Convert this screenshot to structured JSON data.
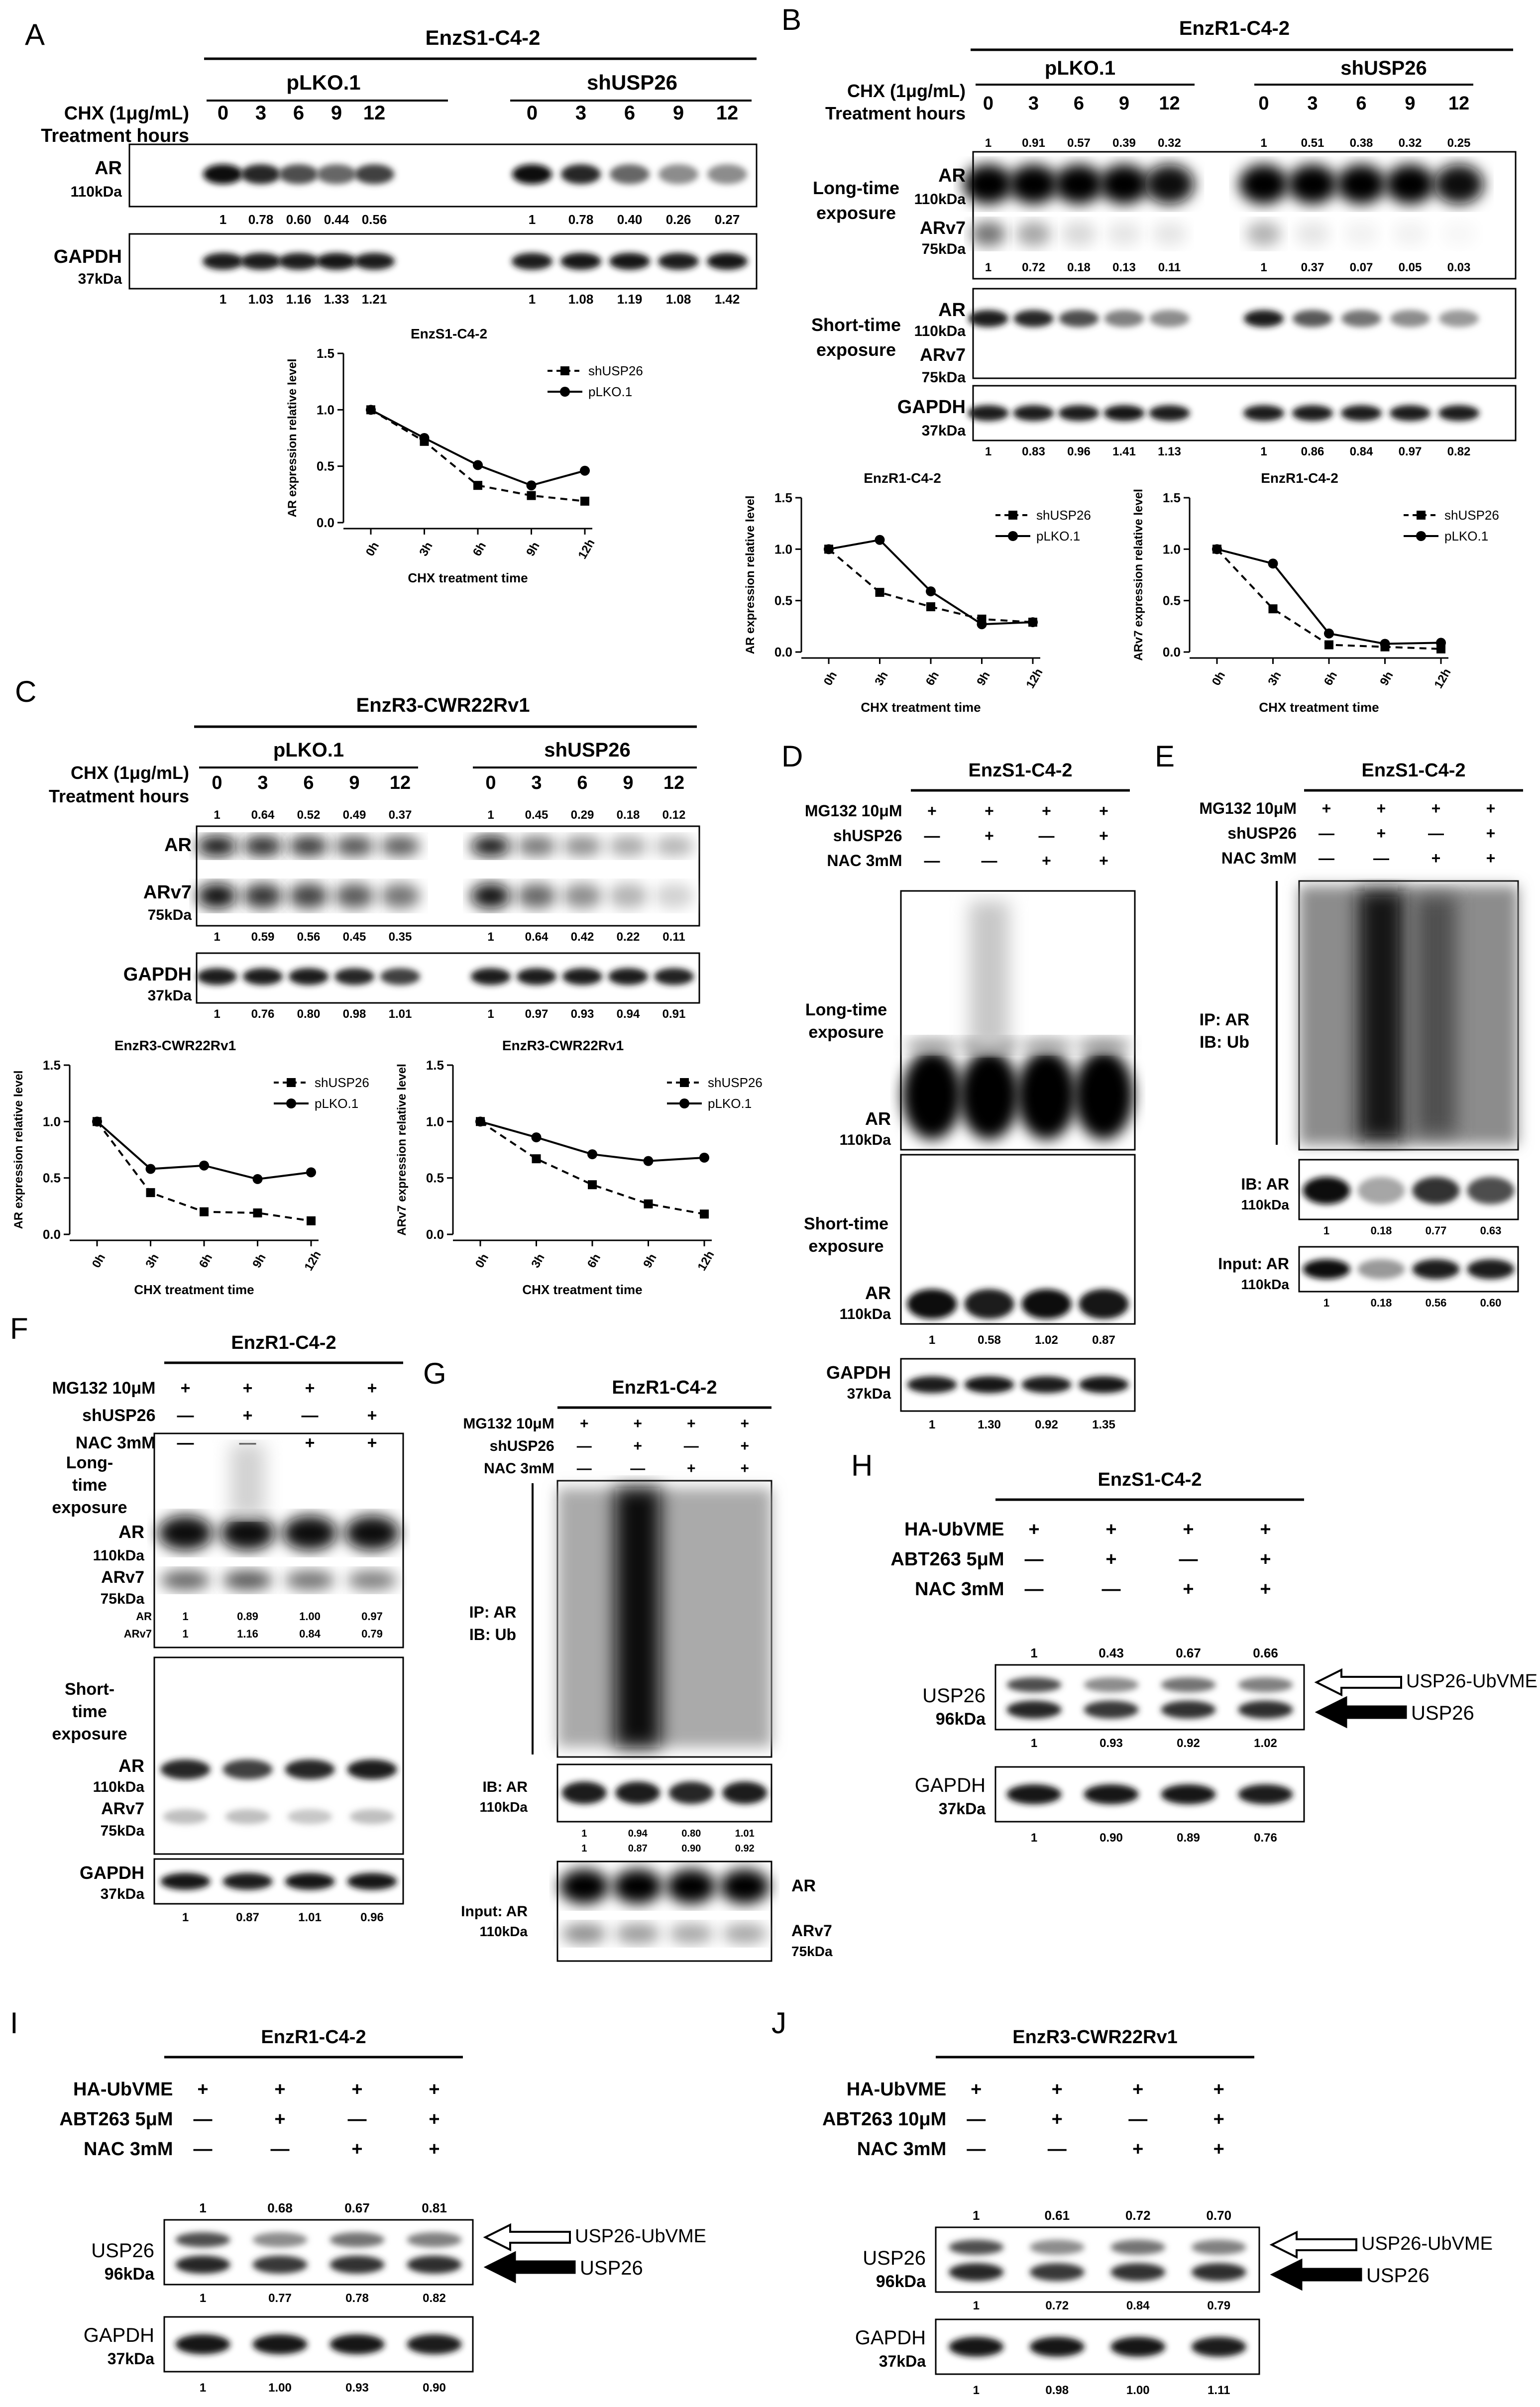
{
  "panels": [
    {
      "letter": "A",
      "title": "EnzS1-C4-2",
      "groups": [
        "pLKO.1",
        "shUSP26"
      ],
      "cond": [
        "CHX (1μg/mL)",
        "Treatment hours"
      ],
      "hours": [
        "0",
        "3",
        "6",
        "9",
        "12"
      ],
      "blots": [
        {
          "labels": [
            "AR",
            "110kDa"
          ],
          "quant": [
            "1",
            "0.78",
            "0.60",
            "0.44",
            "0.56",
            "1",
            "0.78",
            "0.40",
            "0.26",
            "0.27"
          ]
        },
        {
          "labels": [
            "GAPDH",
            "37kDa"
          ],
          "quant": [
            "1",
            "1.03",
            "1.16",
            "1.33",
            "1.21",
            "1",
            "1.08",
            "1.19",
            "1.08",
            "1.42"
          ]
        }
      ]
    },
    {
      "letter": "B",
      "title": "EnzR1-C4-2",
      "groups": [
        "pLKO.1",
        "shUSP26"
      ],
      "cond": [
        "CHX (1μg/mL)",
        "Treatment hours"
      ],
      "hours": [
        "0",
        "3",
        "6",
        "9",
        "12"
      ],
      "blots": [
        {
          "labels": [
            "AR",
            "110kDa",
            "Long-time",
            "exposure",
            "ARv7",
            "75kDa"
          ],
          "quant_top": [
            "1",
            "0.91",
            "0.57",
            "0.39",
            "0.32",
            "1",
            "0.51",
            "0.38",
            "0.32",
            "0.25"
          ],
          "quant": [
            "1",
            "0.72",
            "0.18",
            "0.13",
            "0.11",
            "1",
            "0.37",
            "0.07",
            "0.05",
            "0.03"
          ]
        },
        {
          "labels": [
            "AR",
            "110kDa",
            "Short-time",
            "exposure",
            "ARv7",
            "75kDa"
          ]
        },
        {
          "labels": [
            "GAPDH",
            "37kDa"
          ],
          "quant": [
            "1",
            "0.83",
            "0.96",
            "1.41",
            "1.13",
            "1",
            "0.86",
            "0.84",
            "0.97",
            "0.82"
          ]
        }
      ]
    },
    {
      "letter": "C",
      "title": "EnzR3-CWR22Rv1",
      "groups": [
        "pLKO.1",
        "shUSP26"
      ],
      "cond": [
        "CHX (1μg/mL)",
        "Treatment hours"
      ],
      "hours": [
        "0",
        "3",
        "6",
        "9",
        "12"
      ],
      "blots": [
        {
          "labels": [
            "AR",
            "ARv7",
            "75kDa"
          ],
          "quant_top": [
            "1",
            "0.64",
            "0.52",
            "0.49",
            "0.37",
            "1",
            "0.45",
            "0.29",
            "0.18",
            "0.12"
          ],
          "quant": [
            "1",
            "0.59",
            "0.56",
            "0.45",
            "0.35",
            "1",
            "0.64",
            "0.42",
            "0.22",
            "0.11"
          ]
        },
        {
          "labels": [
            "GAPDH",
            "37kDa"
          ],
          "quant": [
            "1",
            "0.76",
            "0.80",
            "0.98",
            "1.01",
            "1",
            "0.97",
            "0.93",
            "0.94",
            "0.91"
          ]
        }
      ]
    },
    {
      "letter": "D",
      "title": "EnzS1-C4-2",
      "treat_rows": [
        "MG132 10μM",
        "shUSP26",
        "NAC 3mM"
      ],
      "signs": [
        [
          "+",
          "+",
          "+",
          "+"
        ],
        [
          "—",
          "+",
          "—",
          "+"
        ],
        [
          "—",
          "—",
          "+",
          "+"
        ]
      ],
      "blots": [
        {
          "labels": [
            "Long-time",
            "exposure",
            "AR",
            "110kDa"
          ]
        },
        {
          "labels": [
            "Short-time",
            "exposure",
            "AR",
            "110kDa"
          ],
          "quant": [
            "1",
            "0.58",
            "1.02",
            "0.87"
          ]
        },
        {
          "labels": [
            "GAPDH",
            "37kDa"
          ],
          "quant": [
            "1",
            "1.30",
            "0.92",
            "1.35"
          ]
        }
      ]
    },
    {
      "letter": "E",
      "title": "EnzS1-C4-2",
      "treat_rows": [
        "MG132 10μM",
        "shUSP26",
        "NAC 3mM"
      ],
      "signs": [
        [
          "+",
          "+",
          "+",
          "+"
        ],
        [
          "—",
          "+",
          "—",
          "+"
        ],
        [
          "—",
          "—",
          "+",
          "+"
        ]
      ],
      "blots": [
        {
          "labels": [
            "IP: AR",
            "IB: Ub"
          ]
        },
        {
          "labels": [
            "IB: AR",
            "110kDa"
          ],
          "quant": [
            "1",
            "0.18",
            "0.77",
            "0.63"
          ]
        },
        {
          "labels": [
            "Input: AR",
            "110kDa"
          ],
          "quant": [
            "1",
            "0.18",
            "0.56",
            "0.60"
          ]
        }
      ]
    },
    {
      "letter": "F",
      "title": "EnzR1-C4-2",
      "treat_rows": [
        "MG132 10μM",
        "shUSP26",
        "NAC 3mM"
      ],
      "signs": [
        [
          "+",
          "+",
          "+",
          "+"
        ],
        [
          "—",
          "+",
          "—",
          "+"
        ],
        [
          "—",
          "—",
          "+",
          "+"
        ]
      ],
      "blots": [
        {
          "labels": [
            "Long-",
            "time",
            "exposure",
            "AR",
            "110kDa",
            "ARv7",
            "75kDa"
          ],
          "q_labels": [
            "AR",
            "ARv7"
          ],
          "quant_ar": [
            "1",
            "0.89",
            "1.00",
            "0.97"
          ],
          "quant_arv7": [
            "1",
            "1.16",
            "0.84",
            "0.79"
          ]
        },
        {
          "labels": [
            "Short-",
            "time",
            "exposure",
            "AR",
            "110kDa",
            "ARv7",
            "75kDa"
          ]
        },
        {
          "labels": [
            "GAPDH",
            "37kDa"
          ],
          "quant": [
            "1",
            "0.87",
            "1.01",
            "0.96"
          ]
        }
      ]
    },
    {
      "letter": "G",
      "title": "EnzR1-C4-2",
      "treat_rows": [
        "MG132 10μM",
        "shUSP26",
        "NAC 3mM"
      ],
      "signs": [
        [
          "+",
          "+",
          "+",
          "+"
        ],
        [
          "—",
          "+",
          "—",
          "+"
        ],
        [
          "—",
          "—",
          "+",
          "+"
        ]
      ],
      "blots": [
        {
          "labels": [
            "IP: AR",
            "IB: Ub"
          ]
        },
        {
          "labels": [
            "IB: AR",
            "110kDa"
          ],
          "quant": [
            "1",
            "0.94",
            "0.80",
            "1.01"
          ],
          "quant2": [
            "1",
            "0.87",
            "0.90",
            "0.92"
          ]
        },
        {
          "labels": [
            "Input: AR",
            "110kDa",
            "AR",
            "ARv7",
            "75kDa"
          ]
        }
      ]
    },
    {
      "letter": "H",
      "title": "EnzS1-C4-2",
      "treat_rows": [
        "HA-UbVME",
        "ABT263 5μM",
        "NAC 3mM"
      ],
      "signs": [
        [
          "+",
          "+",
          "+",
          "+"
        ],
        [
          "—",
          "+",
          "—",
          "+"
        ],
        [
          "—",
          "—",
          "+",
          "+"
        ]
      ],
      "blots": [
        {
          "labels": [
            "USP26",
            "96kDa"
          ],
          "quant_top": [
            "1",
            "0.43",
            "0.67",
            "0.66"
          ],
          "quant": [
            "1",
            "0.93",
            "0.92",
            "1.02"
          ],
          "arrows": [
            "USP26-UbVME",
            "USP26"
          ]
        },
        {
          "labels": [
            "GAPDH",
            "37kDa"
          ],
          "quant": [
            "1",
            "0.90",
            "0.89",
            "0.76"
          ]
        }
      ]
    },
    {
      "letter": "I",
      "title": "EnzR1-C4-2",
      "treat_rows": [
        "HA-UbVME",
        "ABT263 5μM",
        "NAC 3mM"
      ],
      "signs": [
        [
          "+",
          "+",
          "+",
          "+"
        ],
        [
          "—",
          "+",
          "—",
          "+"
        ],
        [
          "—",
          "—",
          "+",
          "+"
        ]
      ],
      "blots": [
        {
          "labels": [
            "USP26",
            "96kDa"
          ],
          "quant_top": [
            "1",
            "0.68",
            "0.67",
            "0.81"
          ],
          "quant": [
            "1",
            "0.77",
            "0.78",
            "0.82"
          ],
          "arrows": [
            "USP26-UbVME",
            "USP26"
          ]
        },
        {
          "labels": [
            "GAPDH",
            "37kDa"
          ],
          "quant": [
            "1",
            "1.00",
            "0.93",
            "0.90"
          ]
        }
      ]
    },
    {
      "letter": "J",
      "title": "EnzR3-CWR22Rv1",
      "treat_rows": [
        "HA-UbVME",
        "ABT263 10μM",
        "NAC 3mM"
      ],
      "signs": [
        [
          "+",
          "+",
          "+",
          "+"
        ],
        [
          "—",
          "+",
          "—",
          "+"
        ],
        [
          "—",
          "—",
          "+",
          "+"
        ]
      ],
      "blots": [
        {
          "labels": [
            "USP26",
            "96kDa"
          ],
          "quant_top": [
            "1",
            "0.61",
            "0.72",
            "0.70"
          ],
          "quant": [
            "1",
            "0.72",
            "0.84",
            "0.79"
          ],
          "arrows": [
            "USP26-UbVME",
            "USP26"
          ]
        },
        {
          "labels": [
            "GAPDH",
            "37kDa"
          ],
          "quant": [
            "1",
            "0.98",
            "1.00",
            "1.11"
          ]
        }
      ]
    }
  ],
  "chart_data": [
    {
      "type": "line",
      "title": "EnzS1-C4-2",
      "xlabel": "CHX treatment time",
      "ylabel": "AR expression relative level",
      "categories": [
        "0h",
        "3h",
        "6h",
        "9h",
        "12h"
      ],
      "ylim": [
        0,
        1.5
      ],
      "yticks": [
        "0.0",
        "0.5",
        "1.0",
        "1.5"
      ],
      "series": [
        {
          "name": "shUSP26",
          "values": [
            1.0,
            0.72,
            0.33,
            0.24,
            0.19
          ]
        },
        {
          "name": "pLKO.1",
          "values": [
            1.0,
            0.75,
            0.51,
            0.33,
            0.46
          ]
        }
      ]
    },
    {
      "type": "line",
      "title": "EnzR1-C4-2",
      "xlabel": "CHX treatment time",
      "ylabel": "AR expression relative level",
      "categories": [
        "0h",
        "3h",
        "6h",
        "9h",
        "12h"
      ],
      "ylim": [
        0,
        1.5
      ],
      "yticks": [
        "0.0",
        "0.5",
        "1.0",
        "1.5"
      ],
      "series": [
        {
          "name": "shUSP26",
          "values": [
            1.0,
            0.58,
            0.44,
            0.32,
            0.29
          ]
        },
        {
          "name": "pLKO.1",
          "values": [
            1.0,
            1.09,
            0.59,
            0.27,
            0.29
          ]
        }
      ]
    },
    {
      "type": "line",
      "title": "EnzR1-C4-2",
      "xlabel": "CHX treatment time",
      "ylabel": "ARv7 expression relative level",
      "categories": [
        "0h",
        "3h",
        "6h",
        "9h",
        "12h"
      ],
      "ylim": [
        0,
        1.5
      ],
      "yticks": [
        "0.0",
        "0.5",
        "1.0",
        "1.5"
      ],
      "series": [
        {
          "name": "shUSP26",
          "values": [
            1.0,
            0.42,
            0.07,
            0.05,
            0.03
          ]
        },
        {
          "name": "pLKO.1",
          "values": [
            1.0,
            0.86,
            0.18,
            0.08,
            0.09
          ]
        }
      ]
    },
    {
      "type": "line",
      "title": "EnzR3-CWR22Rv1",
      "xlabel": "CHX treatment time",
      "ylabel": "AR expression relative level",
      "categories": [
        "0h",
        "3h",
        "6h",
        "9h",
        "12h"
      ],
      "ylim": [
        0,
        1.5
      ],
      "yticks": [
        "0.0",
        "0.5",
        "1.0",
        "1.5"
      ],
      "series": [
        {
          "name": "shUSP26",
          "values": [
            1.0,
            0.37,
            0.2,
            0.19,
            0.12
          ]
        },
        {
          "name": "pLKO.1",
          "values": [
            1.0,
            0.58,
            0.61,
            0.49,
            0.55
          ]
        }
      ]
    },
    {
      "type": "line",
      "title": "EnzR3-CWR22Rv1",
      "xlabel": "CHX treatment time",
      "ylabel": "ARv7 expression relative level",
      "categories": [
        "0h",
        "3h",
        "6h",
        "9h",
        "12h"
      ],
      "ylim": [
        0,
        1.5
      ],
      "yticks": [
        "0.0",
        "0.5",
        "1.0",
        "1.5"
      ],
      "series": [
        {
          "name": "shUSP26",
          "values": [
            1.0,
            0.67,
            0.44,
            0.27,
            0.18
          ]
        },
        {
          "name": "pLKO.1",
          "values": [
            1.0,
            0.86,
            0.71,
            0.65,
            0.68
          ]
        }
      ]
    }
  ]
}
